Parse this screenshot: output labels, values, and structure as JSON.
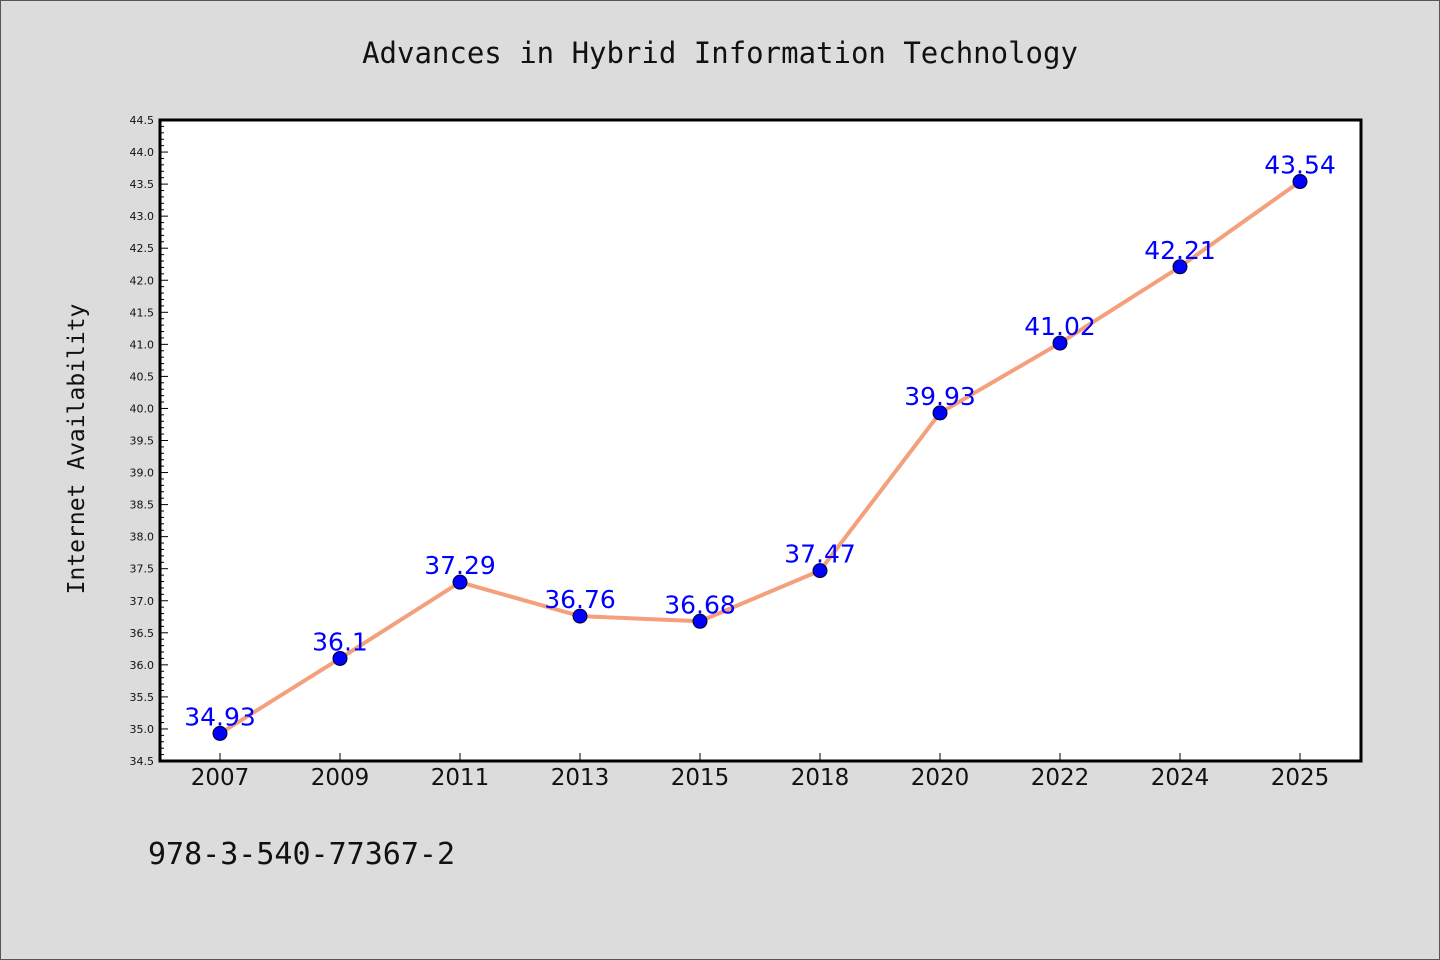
{
  "chart_data": {
    "type": "line",
    "title": "Advances in Hybrid Information Technology",
    "xlabel": "",
    "ylabel": "Internet Availability",
    "categories": [
      "2007",
      "2009",
      "2011",
      "2013",
      "2015",
      "2018",
      "2020",
      "2022",
      "2024",
      "2025"
    ],
    "series": [
      {
        "values": [
          34.93,
          36.1,
          37.29,
          36.76,
          36.68,
          37.47,
          39.93,
          41.02,
          42.21,
          43.54
        ],
        "labels": [
          "34.93",
          "36.1",
          "37.29",
          "36.76",
          "36.68",
          "37.47",
          "39.93",
          "41.02",
          "42.21",
          "43.54"
        ],
        "line_color": "#f4a07c",
        "marker_color": "#0000ff"
      }
    ],
    "ylim": [
      34.5,
      44.5
    ],
    "yticks": [
      "34.5",
      "35.0",
      "35.5",
      "36.0",
      "36.5",
      "37.0",
      "37.5",
      "38.0",
      "38.5",
      "39.0",
      "39.5",
      "40.0",
      "40.5",
      "41.0",
      "41.5",
      "42.0",
      "42.5",
      "43.0",
      "43.5",
      "44.0",
      "44.5"
    ],
    "grid": false,
    "legend": "none"
  },
  "footnote": "978-3-540-77367-2",
  "colors": {
    "background": "#dcdcdc",
    "plot_background": "#ffffff",
    "line": "#f4a07c",
    "marker": "#0000ff",
    "data_label": "#0000ff"
  }
}
